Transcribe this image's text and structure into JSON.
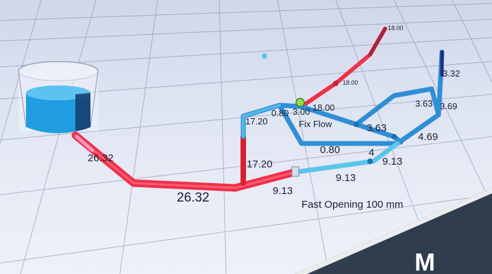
{
  "viewport": {
    "bg_top": "#cfd7ea",
    "bg_bottom": "#eef1f8",
    "grid_color": "#7b86a8",
    "hot_pipe_color": "#f0304a",
    "cool_pipe_color": "#2f8fd6",
    "light_pipe_color": "#5cc6ea",
    "tank_water_color": "#2aa9e8"
  },
  "labels": {
    "pipe_inlet": "26.32",
    "pipe_main": "26.32",
    "pipe_riser": "17.20",
    "pipe_top_left": "17.20",
    "pipe_mid_a": "0.80",
    "pipe_mid_b": "3.00",
    "pipe_upper": "18.00",
    "pipe_upper_far": "18.00",
    "pipe_tip": "18.00",
    "pipe_right_a": "3.63",
    "pipe_right_b": "3.63",
    "pipe_right_c": "3.69",
    "pipe_right_top": "3.32",
    "pipe_right_low": "4.69",
    "pipe_center": "0.80",
    "pipe_center_b": "4",
    "pipe_low_right": "9.13",
    "pipe_low_mid": "9.13",
    "pipe_low_left": "9.13",
    "fix_flow": "Fix Flow",
    "valve_caption": "Fast Opening 100 mm"
  },
  "overlay": {
    "badge_color": "#2f3d4e",
    "badge_stripe": "#ffffff",
    "badge_text": "M"
  }
}
